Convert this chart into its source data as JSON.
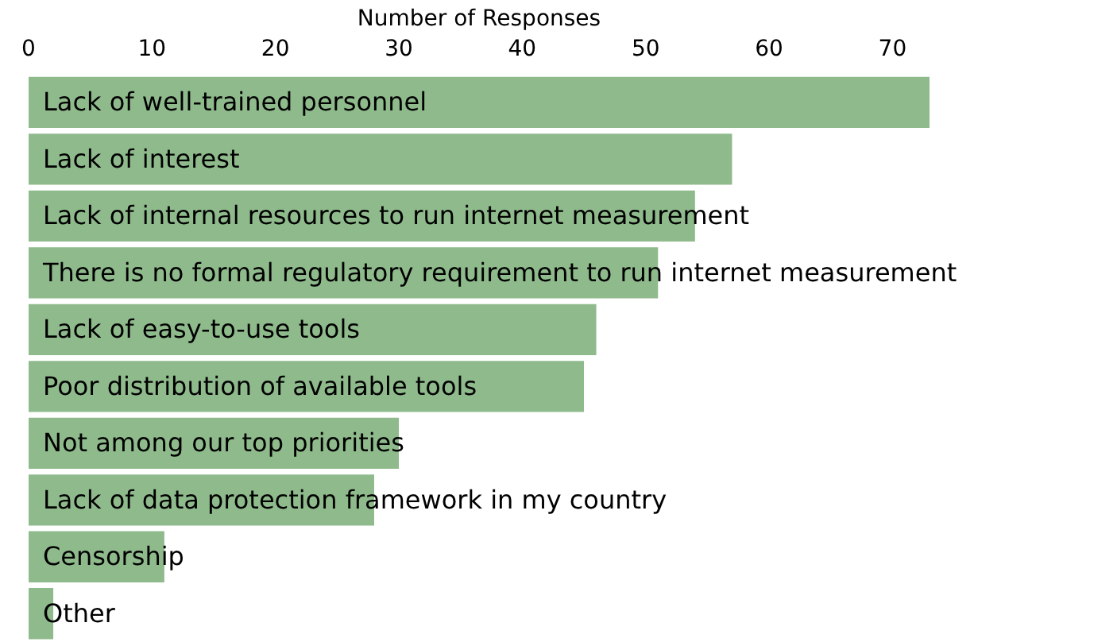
{
  "chart_data": {
    "type": "bar",
    "orientation": "horizontal",
    "xlabel": "Number of Responses",
    "categories": [
      "Lack of well-trained personnel",
      "Lack of interest",
      "Lack of internal resources to run internet measurement",
      "There is no formal regulatory requirement to run internet measurement",
      "Lack of easy-to-use tools",
      "Poor distribution of available tools",
      "Not among our top priorities",
      "Lack of data protection framework in my country",
      "Censorship",
      "Other"
    ],
    "values": [
      73,
      57,
      54,
      51,
      46,
      45,
      30,
      28,
      11,
      2
    ],
    "color": "#8fbb8c",
    "xlim": [
      0,
      73
    ],
    "xticks": [
      0,
      10,
      20,
      30,
      40,
      50,
      60,
      70
    ],
    "grid": false,
    "legend": false
  }
}
